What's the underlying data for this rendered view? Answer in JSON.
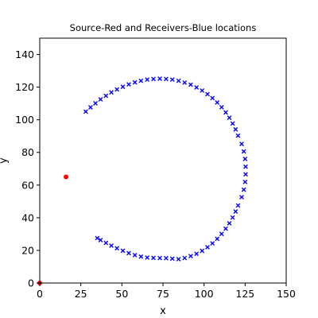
{
  "chart_data": {
    "type": "scatter",
    "title": "Source-Red and Receivers-Blue locations",
    "xlabel": "x",
    "ylabel": "y",
    "xlim": [
      0,
      150
    ],
    "ylim": [
      0,
      150
    ],
    "xticks": [
      0,
      25,
      50,
      75,
      100,
      125,
      150
    ],
    "yticks": [
      0,
      20,
      40,
      60,
      80,
      100,
      120,
      140
    ],
    "grid": false,
    "series": [
      {
        "role": "source",
        "color": "#ff0000",
        "marker": "circle",
        "points": [
          [
            16,
            65
          ],
          [
            0,
            0
          ]
        ]
      },
      {
        "role": "receivers",
        "color": "#0000ff",
        "marker": "x",
        "points": [
          [
            28.0,
            105.0
          ],
          [
            30.9,
            107.6
          ],
          [
            33.9,
            110.1
          ],
          [
            37.0,
            112.5
          ],
          [
            40.3,
            114.7
          ],
          [
            43.6,
            116.8
          ],
          [
            47.0,
            118.6
          ],
          [
            50.6,
            120.2
          ],
          [
            54.2,
            121.7
          ],
          [
            57.9,
            122.9
          ],
          [
            61.6,
            123.9
          ],
          [
            65.4,
            124.6
          ],
          [
            69.2,
            125.0
          ],
          [
            73.1,
            125.2
          ],
          [
            76.9,
            125.0
          ],
          [
            80.7,
            124.6
          ],
          [
            84.5,
            123.9
          ],
          [
            88.2,
            122.8
          ],
          [
            91.9,
            121.5
          ],
          [
            95.4,
            119.8
          ],
          [
            98.8,
            117.9
          ],
          [
            102.1,
            115.7
          ],
          [
            105.1,
            113.3
          ],
          [
            108.0,
            110.6
          ],
          [
            110.7,
            107.7
          ],
          [
            113.2,
            104.5
          ],
          [
            115.4,
            101.2
          ],
          [
            117.4,
            97.7
          ],
          [
            119.2,
            94.1
          ],
          [
            120.7,
            90.3
          ],
          [
            122.9,
            85.2
          ],
          [
            124.2,
            80.6
          ],
          [
            125.0,
            76.0
          ],
          [
            125.3,
            71.3
          ],
          [
            125.3,
            66.6
          ],
          [
            125.0,
            61.9
          ],
          [
            124.2,
            57.2
          ],
          [
            122.9,
            52.6
          ],
          [
            120.7,
            47.5
          ],
          [
            119.2,
            43.8
          ],
          [
            117.4,
            40.1
          ],
          [
            115.4,
            36.6
          ],
          [
            113.2,
            33.3
          ],
          [
            110.7,
            30.1
          ],
          [
            108.0,
            27.1
          ],
          [
            105.1,
            24.3
          ],
          [
            102.1,
            21.9
          ],
          [
            98.8,
            19.7
          ],
          [
            95.4,
            17.9
          ],
          [
            91.9,
            16.5
          ],
          [
            88.2,
            15.3
          ],
          [
            84.5,
            14.6
          ],
          [
            80.7,
            14.9
          ],
          [
            76.9,
            15.2
          ],
          [
            73.1,
            15.3
          ],
          [
            69.2,
            15.4
          ],
          [
            65.4,
            15.6
          ],
          [
            61.6,
            16.2
          ],
          [
            57.9,
            17.1
          ],
          [
            54.2,
            18.3
          ],
          [
            50.6,
            19.8
          ],
          [
            47.0,
            21.3
          ],
          [
            43.6,
            22.9
          ],
          [
            40.3,
            24.6
          ],
          [
            37.0,
            26.3
          ],
          [
            35.0,
            27.5
          ]
        ]
      }
    ]
  }
}
